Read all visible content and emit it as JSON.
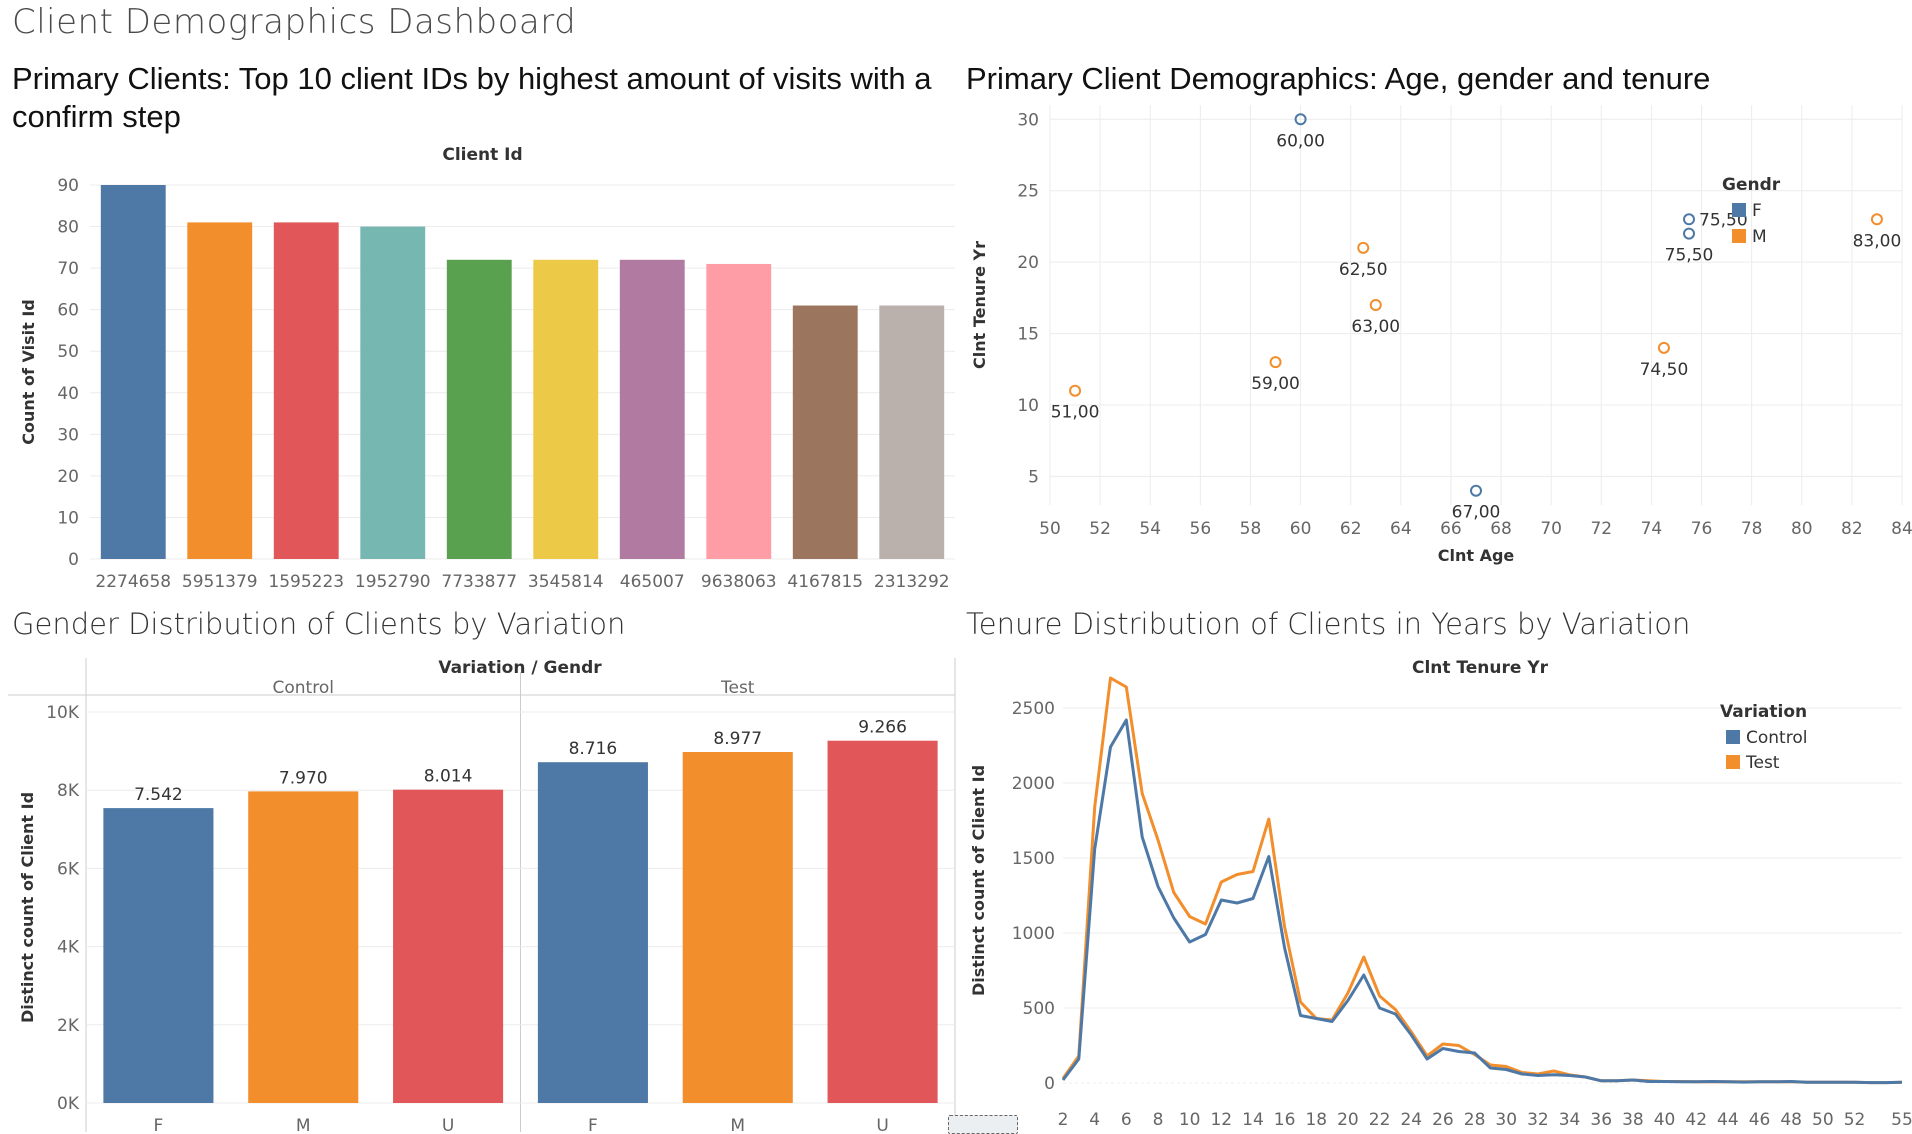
{
  "dashboard": {
    "title": "Client Demographics Dashboard"
  },
  "panels": {
    "top_left_title": "Primary Clients: Top 10 client IDs by highest amount of visits with a confirm step",
    "top_right_title": "Primary Client Demographics: Age, gender and tenure",
    "bottom_left_title": "Gender Distribution of Clients by Variation",
    "bottom_right_title": "Tenure Distribution of Clients in Years by Variation"
  },
  "colors": {
    "blue": "#4e79a7",
    "orange": "#f28e2b",
    "red": "#e15759",
    "teal": "#76b7b2",
    "green": "#59a14f",
    "yellow": "#edc948",
    "purple": "#b07aa1",
    "pink": "#ff9da7",
    "brown": "#9c755f",
    "gray": "#bab0ac"
  },
  "chart_data": [
    {
      "id": "top_clients",
      "type": "bar",
      "header": "Client Id",
      "ylabel": "Count of Visit Id",
      "ylim": [
        0,
        90
      ],
      "yticks": [
        0,
        10,
        20,
        30,
        40,
        50,
        60,
        70,
        80,
        90
      ],
      "categories": [
        "2274658",
        "5951379",
        "1595223",
        "1952790",
        "7733877",
        "3545814",
        "465007",
        "9638063",
        "4167815",
        "2313292"
      ],
      "values": [
        90,
        81,
        81,
        80,
        72,
        72,
        72,
        71,
        61,
        61
      ],
      "bar_colors": [
        "#4e79a7",
        "#f28e2b",
        "#e15759",
        "#76b7b2",
        "#59a14f",
        "#edc948",
        "#b07aa1",
        "#ff9da7",
        "#9c755f",
        "#bab0ac"
      ]
    },
    {
      "id": "age_tenure",
      "type": "scatter",
      "xlabel": "Clnt Age",
      "ylabel": "Clnt Tenure Yr",
      "xlim": [
        50,
        84
      ],
      "ylim": [
        3,
        31
      ],
      "xticks": [
        50,
        52,
        54,
        56,
        58,
        60,
        62,
        64,
        66,
        68,
        70,
        72,
        74,
        76,
        78,
        80,
        82,
        84
      ],
      "yticks": [
        5,
        10,
        15,
        20,
        25,
        30
      ],
      "legend": {
        "title": "Gendr",
        "items": [
          {
            "label": "F",
            "color": "#4e79a7"
          },
          {
            "label": "M",
            "color": "#f28e2b"
          }
        ],
        "position": "top-right"
      },
      "points": [
        {
          "x": 60,
          "y": 30,
          "g": "F",
          "label": "60,00"
        },
        {
          "x": 51,
          "y": 11,
          "g": "M",
          "label": "51,00"
        },
        {
          "x": 59,
          "y": 13,
          "g": "M",
          "label": "59,00"
        },
        {
          "x": 62.5,
          "y": 21,
          "g": "M",
          "label": "62,50"
        },
        {
          "x": 63,
          "y": 17,
          "g": "M",
          "label": "63,00"
        },
        {
          "x": 67,
          "y": 4,
          "g": "F",
          "label": "67,00"
        },
        {
          "x": 74.5,
          "y": 14,
          "g": "M",
          "label": "74,50"
        },
        {
          "x": 75.5,
          "y": 23,
          "g": "F",
          "label": "75,50"
        },
        {
          "x": 75.5,
          "y": 22,
          "g": "F",
          "label": "75,50"
        },
        {
          "x": 83,
          "y": 23,
          "g": "M",
          "label": "83,00"
        }
      ]
    },
    {
      "id": "gender_variation",
      "type": "bar",
      "header": "Variation / Gendr",
      "ylabel": "Distinct count of Client Id",
      "ylim": [
        0,
        10000
      ],
      "yticks": [
        "0K",
        "2K",
        "4K",
        "6K",
        "8K",
        "10K"
      ],
      "groups": [
        {
          "name": "Control",
          "categories": [
            "F",
            "M",
            "U"
          ],
          "values": [
            7542,
            7970,
            8014
          ],
          "labels": [
            "7.542",
            "7.970",
            "8.014"
          ]
        },
        {
          "name": "Test",
          "categories": [
            "F",
            "M",
            "U"
          ],
          "values": [
            8716,
            8977,
            9266
          ],
          "labels": [
            "8.716",
            "8.977",
            "9.266"
          ]
        }
      ],
      "bar_colors": [
        "#4e79a7",
        "#f28e2b",
        "#e15759"
      ]
    },
    {
      "id": "tenure_variation",
      "type": "line",
      "header": "Clnt Tenure Yr",
      "ylabel": "Distinct count of Client Id",
      "ylim": [
        0,
        2700
      ],
      "xlim": [
        2,
        55
      ],
      "yticks": [
        0,
        500,
        1000,
        1500,
        2000,
        2500
      ],
      "xticks": [
        2,
        4,
        6,
        8,
        10,
        12,
        14,
        16,
        18,
        20,
        22,
        24,
        26,
        28,
        30,
        32,
        34,
        36,
        38,
        40,
        42,
        44,
        46,
        48,
        50,
        52,
        55
      ],
      "legend": {
        "title": "Variation",
        "items": [
          {
            "label": "Control",
            "color": "#4e79a7"
          },
          {
            "label": "Test",
            "color": "#f28e2b"
          }
        ],
        "position": "top-right"
      },
      "x": [
        2,
        3,
        4,
        5,
        6,
        7,
        8,
        9,
        10,
        11,
        12,
        13,
        14,
        15,
        16,
        17,
        18,
        19,
        20,
        21,
        22,
        23,
        24,
        25,
        26,
        27,
        28,
        29,
        30,
        31,
        32,
        33,
        34,
        35,
        36,
        37,
        38,
        39,
        40,
        41,
        42,
        43,
        44,
        45,
        46,
        47,
        48,
        49,
        50,
        51,
        52,
        53,
        54,
        55
      ],
      "series": [
        {
          "name": "Control",
          "values": [
            20,
            160,
            1560,
            2240,
            2420,
            1640,
            1310,
            1100,
            940,
            990,
            1220,
            1200,
            1230,
            1510,
            900,
            450,
            430,
            410,
            550,
            720,
            500,
            460,
            320,
            160,
            230,
            210,
            200,
            100,
            90,
            60,
            50,
            55,
            50,
            40,
            15,
            15,
            20,
            10,
            10,
            8,
            8,
            10,
            8,
            6,
            8,
            8,
            10,
            5,
            5,
            5,
            5,
            3,
            3,
            5
          ]
        },
        {
          "name": "Test",
          "values": [
            30,
            180,
            1840,
            2700,
            2640,
            1930,
            1620,
            1270,
            1110,
            1060,
            1340,
            1390,
            1410,
            1760,
            1040,
            540,
            430,
            420,
            600,
            840,
            580,
            490,
            340,
            180,
            260,
            250,
            190,
            120,
            110,
            70,
            60,
            80,
            55,
            40,
            15,
            15,
            20,
            15,
            10,
            10,
            8,
            8,
            8,
            8,
            8,
            8,
            8,
            5,
            5,
            5,
            5,
            3,
            3,
            5
          ]
        }
      ]
    }
  ]
}
